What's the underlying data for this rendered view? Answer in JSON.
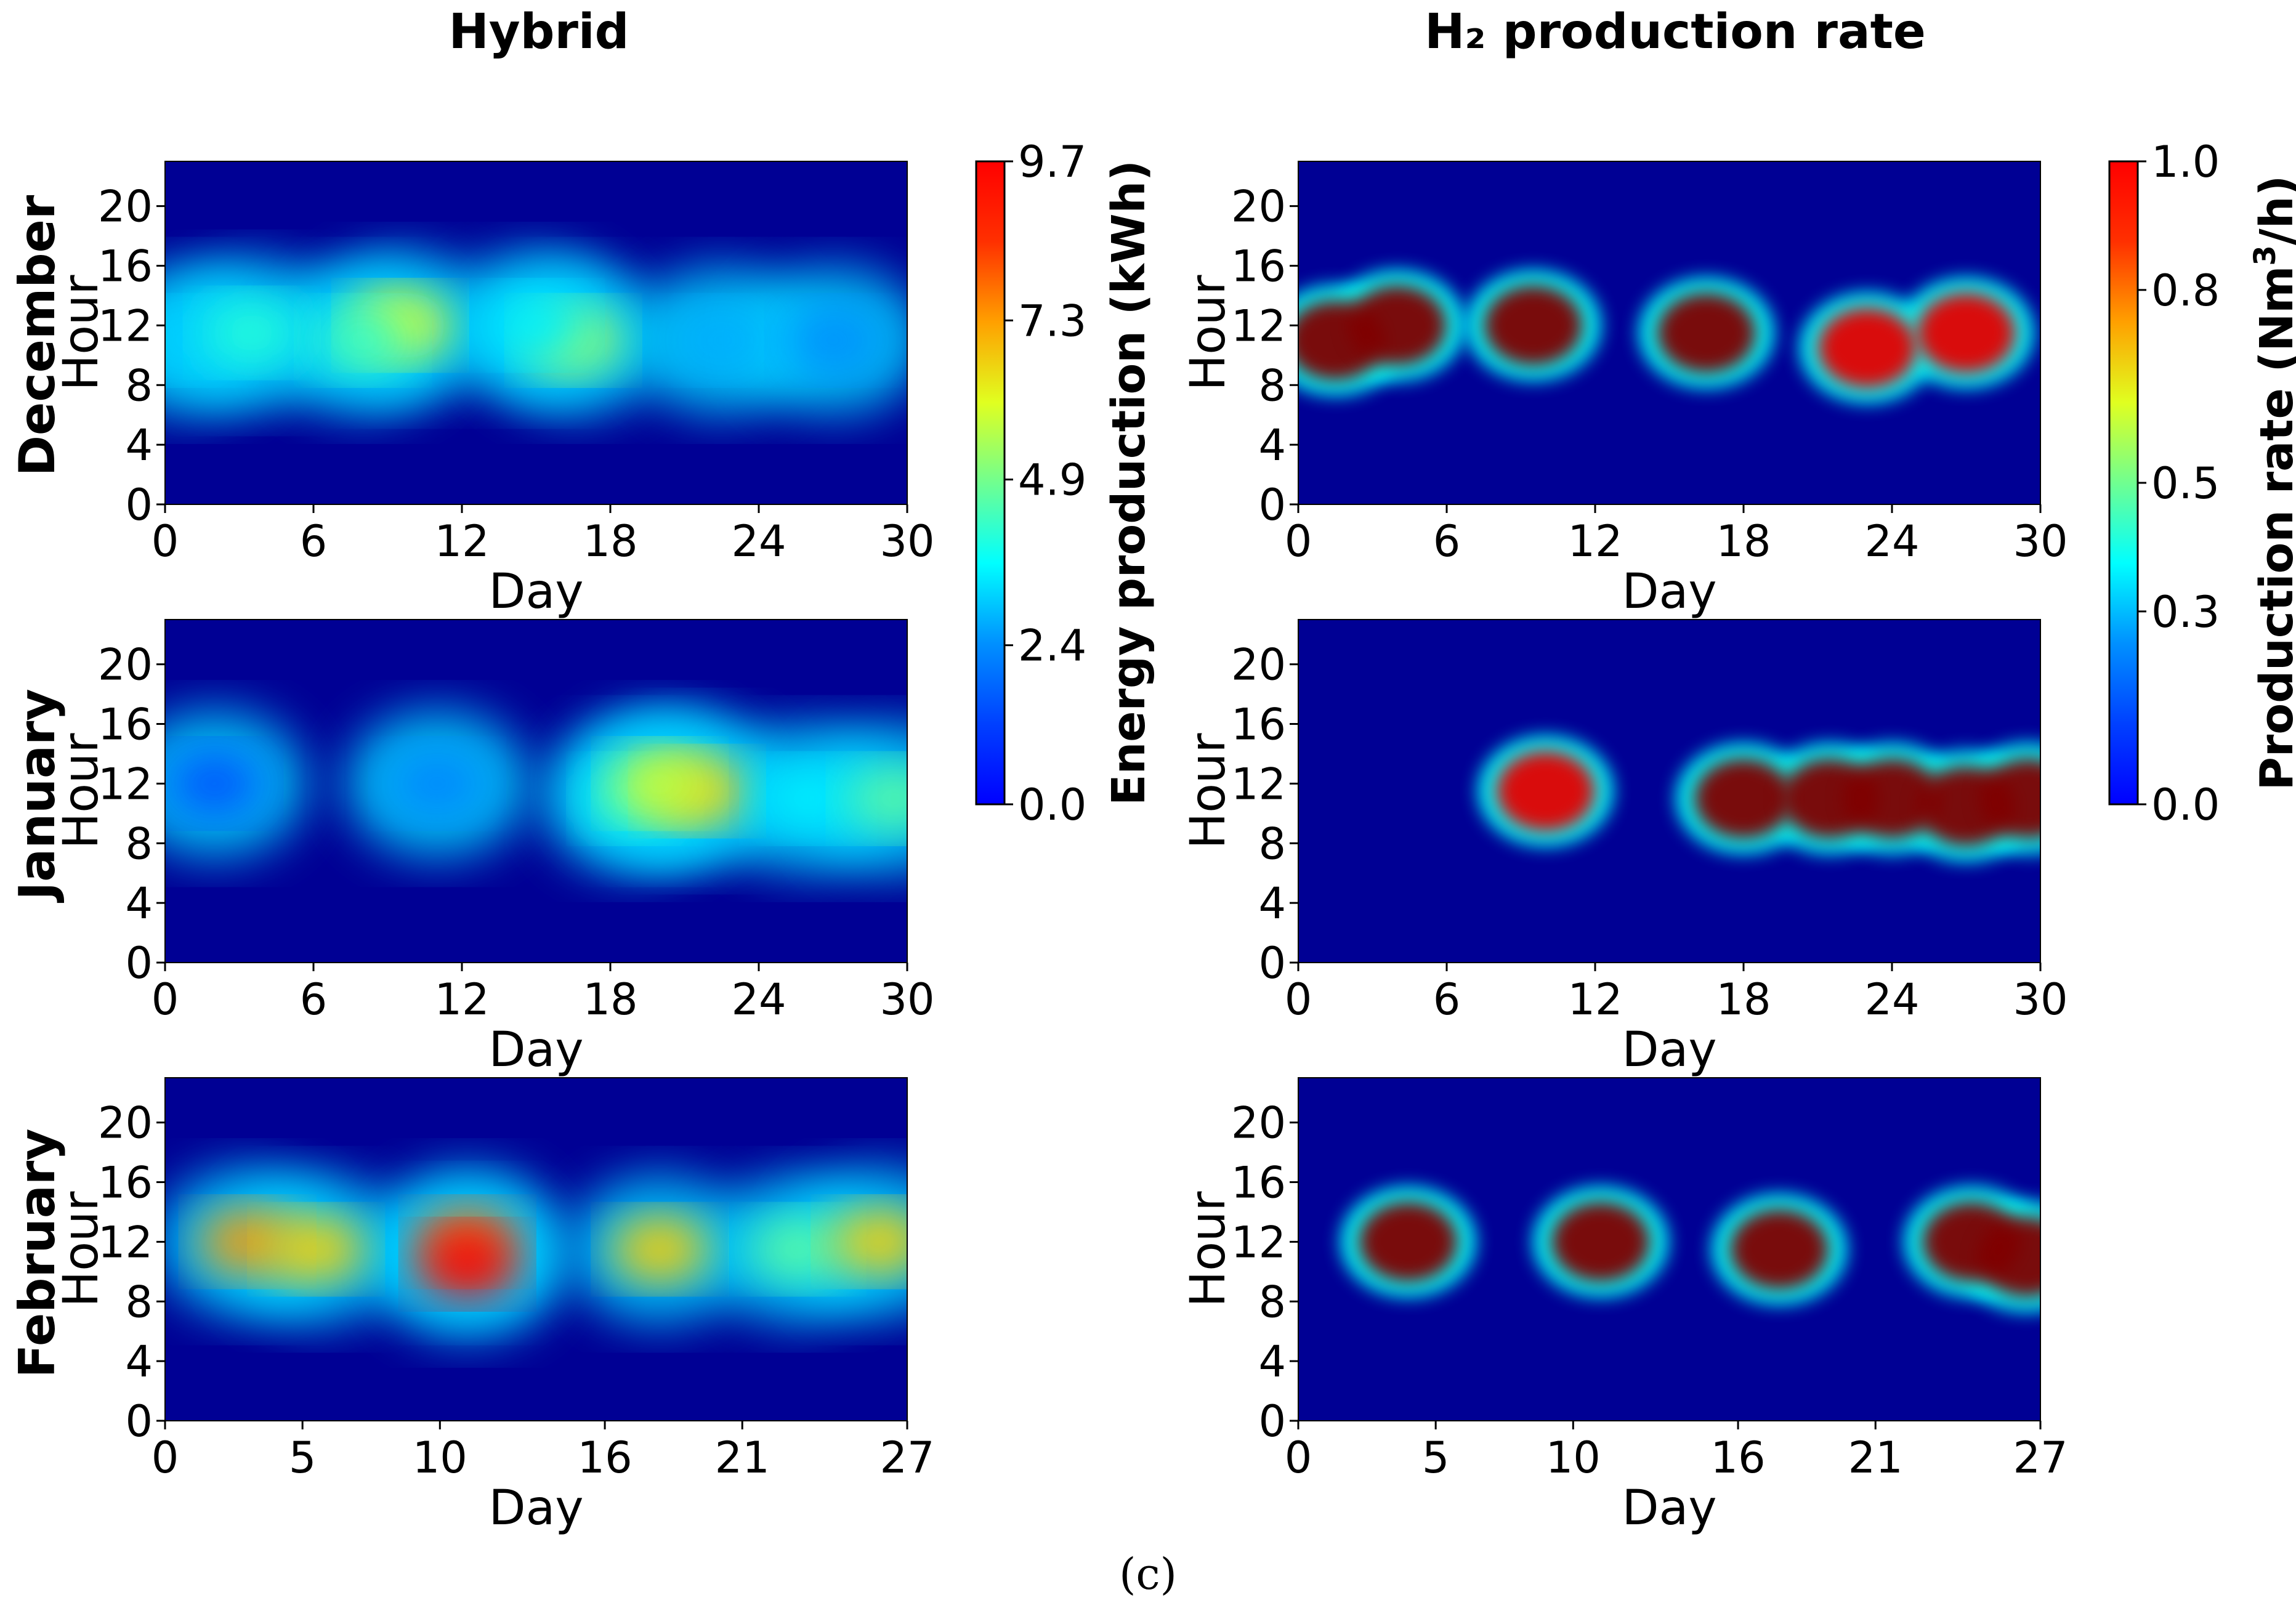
{
  "figure": {
    "caption": "(c)",
    "column_titles": [
      "Hybrid",
      "H₂ production rate"
    ]
  },
  "colors": {
    "colormap": "jet",
    "background": "#ffffff"
  },
  "chart_data": [
    {
      "type": "heatmap",
      "id": "hybrid-december",
      "column": "Hybrid",
      "row_label": "December",
      "xlabel": "Day",
      "ylabel": "Hour",
      "x_ticks": [
        0,
        6,
        12,
        18,
        24,
        30
      ],
      "y_ticks": [
        0,
        4,
        8,
        12,
        16,
        20
      ],
      "xlim": [
        0,
        30
      ],
      "ylim": [
        0,
        23
      ],
      "value_range": [
        0,
        9.7
      ],
      "z_description": "Energy production (kWh) by day and hour",
      "hot_spots": [
        {
          "day": 1,
          "hour": 11,
          "value": 3.2
        },
        {
          "day": 3.5,
          "hour": 11.5,
          "value": 4.0
        },
        {
          "day": 9.5,
          "hour": 12,
          "value": 6.0
        },
        {
          "day": 8,
          "hour": 11,
          "value": 4.2
        },
        {
          "day": 16.5,
          "hour": 11,
          "value": 5.2
        },
        {
          "day": 15,
          "hour": 12,
          "value": 3.5
        },
        {
          "day": 22.5,
          "hour": 11,
          "value": 2.9
        },
        {
          "day": 27,
          "hour": 11,
          "value": 2.6
        }
      ]
    },
    {
      "type": "heatmap",
      "id": "h2-december",
      "column": "H₂ production rate",
      "row_label": "December",
      "xlabel": "Day",
      "ylabel": "Hour",
      "x_ticks": [
        0,
        6,
        12,
        18,
        24,
        30
      ],
      "y_ticks": [
        0,
        4,
        8,
        12,
        16,
        20
      ],
      "xlim": [
        0,
        30
      ],
      "ylim": [
        0,
        23
      ],
      "value_range": [
        0,
        1.0
      ],
      "z_description": "Production rate (Nm3/h) by day and hour",
      "hot_spots": [
        {
          "day": 1.5,
          "hour": 11,
          "value": 1.0
        },
        {
          "day": 4,
          "hour": 12,
          "value": 1.0
        },
        {
          "day": 9.5,
          "hour": 12,
          "value": 1.0
        },
        {
          "day": 16.5,
          "hour": 11.5,
          "value": 1.0
        },
        {
          "day": 23,
          "hour": 10.5,
          "value": 0.9
        },
        {
          "day": 27,
          "hour": 11.5,
          "value": 0.9
        }
      ]
    },
    {
      "type": "heatmap",
      "id": "hybrid-january",
      "column": "Hybrid",
      "row_label": "January",
      "xlabel": "Day",
      "ylabel": "Hour",
      "x_ticks": [
        0,
        6,
        12,
        18,
        24,
        30
      ],
      "y_ticks": [
        0,
        4,
        8,
        12,
        16,
        20
      ],
      "xlim": [
        0,
        30
      ],
      "ylim": [
        0,
        23
      ],
      "value_range": [
        0,
        9.7
      ],
      "z_description": "Energy production (kWh) by day and hour",
      "hot_spots": [
        {
          "day": 2,
          "hour": 12,
          "value": 2.0
        },
        {
          "day": 11,
          "hour": 12,
          "value": 2.5
        },
        {
          "day": 19,
          "hour": 11,
          "value": 4.0
        },
        {
          "day": 21.5,
          "hour": 11.5,
          "value": 6.5
        },
        {
          "day": 20,
          "hour": 12,
          "value": 5.5
        },
        {
          "day": 26,
          "hour": 11,
          "value": 3.5
        },
        {
          "day": 29.5,
          "hour": 11,
          "value": 4.5
        }
      ]
    },
    {
      "type": "heatmap",
      "id": "h2-january",
      "column": "H₂ production rate",
      "row_label": "January",
      "xlabel": "Day",
      "ylabel": "Hour",
      "x_ticks": [
        0,
        6,
        12,
        18,
        24,
        30
      ],
      "y_ticks": [
        0,
        4,
        8,
        12,
        16,
        20
      ],
      "xlim": [
        0,
        30
      ],
      "ylim": [
        0,
        23
      ],
      "value_range": [
        0,
        1.0
      ],
      "z_description": "Production rate (Nm3/h) by day and hour",
      "hot_spots": [
        {
          "day": 10,
          "hour": 11.5,
          "value": 0.9
        },
        {
          "day": 18,
          "hour": 11,
          "value": 1.0
        },
        {
          "day": 21.5,
          "hour": 11,
          "value": 1.0
        },
        {
          "day": 24,
          "hour": 11,
          "value": 1.0
        },
        {
          "day": 27,
          "hour": 10.5,
          "value": 1.0
        },
        {
          "day": 29.5,
          "hour": 11,
          "value": 1.0
        }
      ]
    },
    {
      "type": "heatmap",
      "id": "hybrid-february",
      "column": "Hybrid",
      "row_label": "February",
      "xlabel": "Day",
      "ylabel": "Hour",
      "x_ticks": [
        0,
        5,
        10,
        16,
        21,
        27
      ],
      "y_ticks": [
        0,
        4,
        8,
        12,
        16,
        20
      ],
      "xlim": [
        0,
        27
      ],
      "ylim": [
        0,
        23
      ],
      "value_range": [
        0,
        9.7
      ],
      "z_description": "Energy production (kWh) by day and hour",
      "hot_spots": [
        {
          "day": 3,
          "hour": 12,
          "value": 7.0
        },
        {
          "day": 5.5,
          "hour": 11.5,
          "value": 6.5
        },
        {
          "day": 11,
          "hour": 12,
          "value": 7.5
        },
        {
          "day": 11,
          "hour": 10.5,
          "value": 8.5
        },
        {
          "day": 18,
          "hour": 11.5,
          "value": 6.5
        },
        {
          "day": 23,
          "hour": 11.5,
          "value": 4.5
        },
        {
          "day": 26,
          "hour": 12,
          "value": 6.5
        }
      ]
    },
    {
      "type": "heatmap",
      "id": "h2-february",
      "column": "H₂ production rate",
      "row_label": "February",
      "xlabel": "Day",
      "ylabel": "Hour",
      "x_ticks": [
        0,
        5,
        10,
        16,
        21,
        27
      ],
      "y_ticks": [
        0,
        4,
        8,
        12,
        16,
        20
      ],
      "xlim": [
        0,
        27
      ],
      "ylim": [
        0,
        23
      ],
      "value_range": [
        0,
        1.0
      ],
      "z_description": "Production rate (Nm3/h) by day and hour",
      "hot_spots": [
        {
          "day": 4,
          "hour": 12,
          "value": 1.0
        },
        {
          "day": 11,
          "hour": 12,
          "value": 1.0
        },
        {
          "day": 17.5,
          "hour": 11.5,
          "value": 1.0
        },
        {
          "day": 24.5,
          "hour": 12,
          "value": 1.0
        },
        {
          "day": 26.5,
          "hour": 11,
          "value": 1.0
        }
      ]
    }
  ],
  "colorbars": [
    {
      "id": "energy-colorbar",
      "label": "Energy production (kWh)",
      "ticks": [
        "0.0",
        "2.4",
        "4.9",
        "7.3",
        "9.7"
      ],
      "range": [
        0,
        9.7
      ]
    },
    {
      "id": "rate-colorbar",
      "label_main": "Production rate (Nm",
      "label_sup": "3",
      "label_tail": "/h)",
      "ticks": [
        "0.0",
        "0.3",
        "0.5",
        "0.8",
        "1.0"
      ],
      "range": [
        0,
        1.0
      ]
    }
  ]
}
